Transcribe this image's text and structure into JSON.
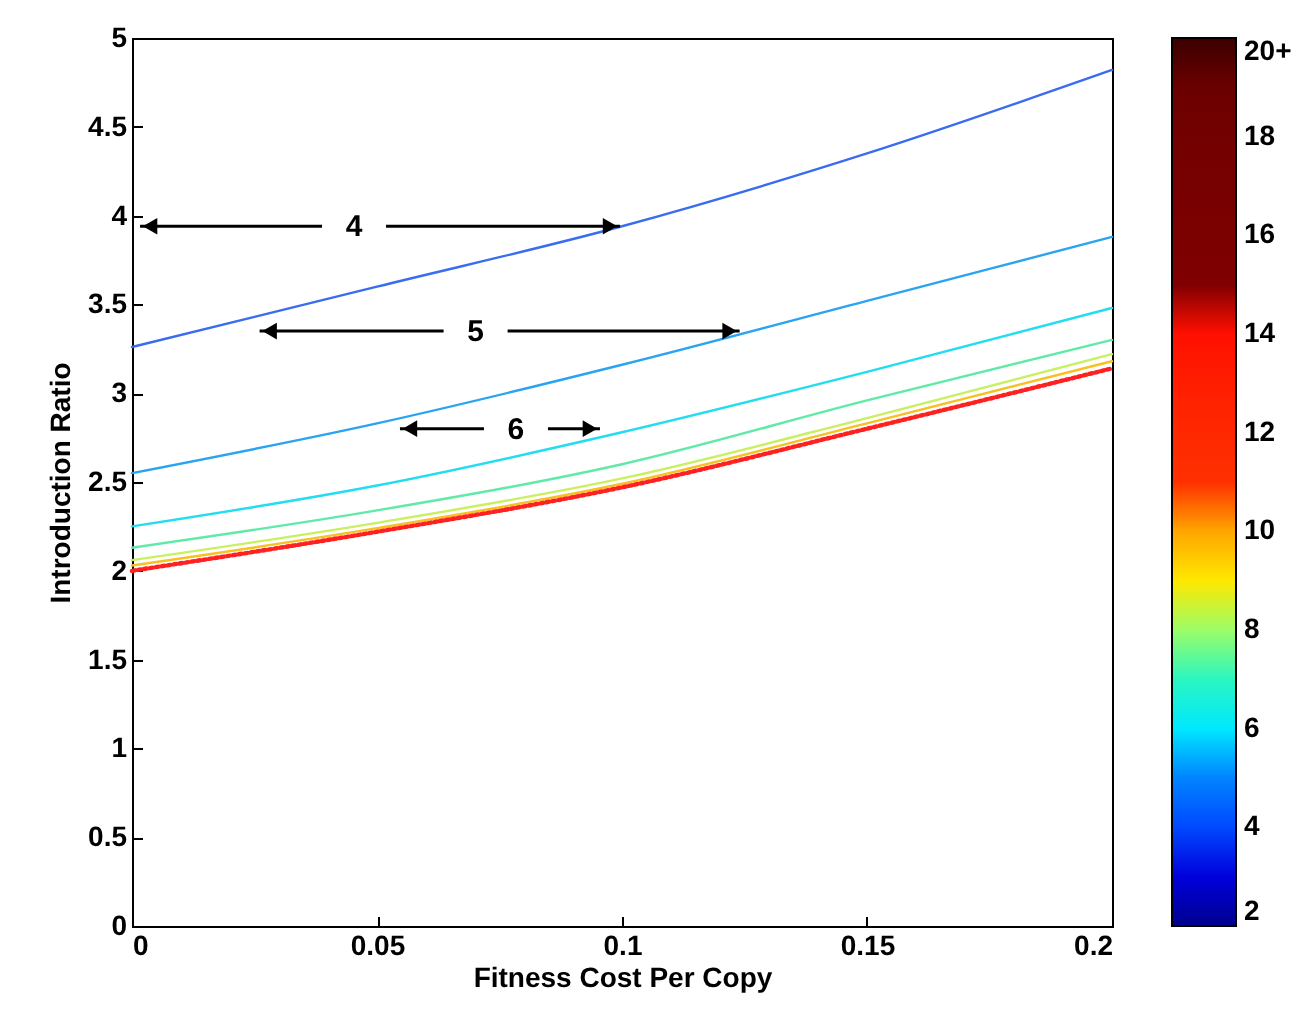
{
  "chart_data": {
    "type": "line",
    "xlabel": "Fitness Cost Per Copy",
    "ylabel": "Introduction Ratio",
    "x": [
      0,
      0.05,
      0.1,
      0.15,
      0.2
    ],
    "series": [
      {
        "color": "#3a6cf0",
        "values": [
          3.26,
          3.6,
          3.94,
          4.35,
          4.82
        ]
      },
      {
        "color": "#2aa4f0",
        "values": [
          2.55,
          2.83,
          3.16,
          3.52,
          3.88
        ]
      },
      {
        "color": "#22dcf0",
        "values": [
          2.25,
          2.48,
          2.78,
          3.12,
          3.48
        ]
      },
      {
        "color": "#60eaa8",
        "values": [
          2.13,
          2.34,
          2.6,
          2.96,
          3.3
        ]
      },
      {
        "color": "#c8f060",
        "values": [
          2.06,
          2.27,
          2.52,
          2.86,
          3.22
        ]
      },
      {
        "color": "#f8c020",
        "values": [
          2.03,
          2.24,
          2.49,
          2.83,
          3.18
        ]
      },
      {
        "color": "#ff2020",
        "line_style": "dotted",
        "values": [
          2.0,
          2.22,
          2.47,
          2.8,
          3.14
        ]
      }
    ],
    "xlim": [
      0,
      0.2
    ],
    "xticks": [
      0,
      0.05,
      0.1,
      0.15,
      0.2
    ],
    "ylim": [
      0,
      5
    ],
    "yticks": [
      0,
      0.5,
      1,
      1.5,
      2,
      2.5,
      3,
      3.5,
      4,
      4.5,
      5
    ],
    "clim": [
      2,
      20
    ],
    "cticks": [
      2,
      4,
      6,
      8,
      10,
      12,
      14,
      16,
      18,
      {
        "value": 20,
        "label": "20+"
      }
    ],
    "grid": false,
    "annotations": [
      {
        "text": "4",
        "x": 0.0996,
        "y": 3.94
      },
      {
        "text": "5",
        "x": 0.124,
        "y": 3.35
      },
      {
        "text": "6",
        "x": 0.0955,
        "y": 2.8
      }
    ]
  }
}
